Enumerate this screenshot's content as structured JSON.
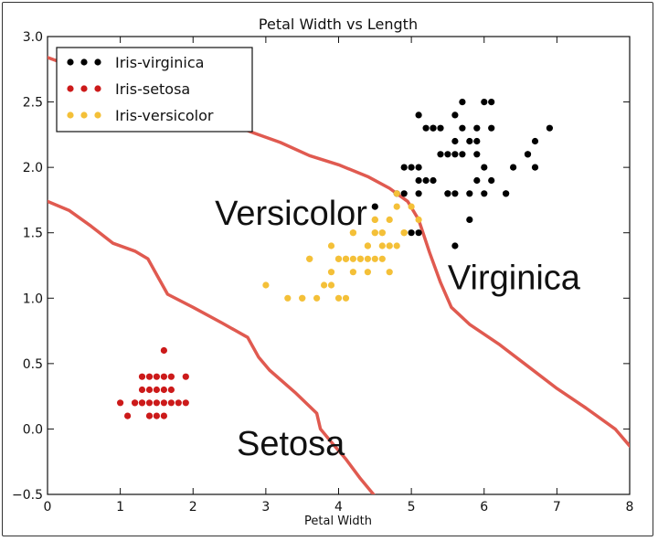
{
  "chart_data": {
    "type": "scatter",
    "title": "Petal Width vs Length",
    "xlabel": "Petal Width",
    "ylabel": "",
    "xlim": [
      0,
      8
    ],
    "ylim": [
      -0.5,
      3.0
    ],
    "xticks": [
      0,
      1,
      2,
      3,
      4,
      5,
      6,
      7,
      8
    ],
    "yticks": [
      -0.5,
      0.0,
      0.5,
      1.0,
      1.5,
      2.0,
      2.5,
      3.0
    ],
    "xtick_labels": [
      "0",
      "1",
      "2",
      "3",
      "4",
      "5",
      "6",
      "7",
      "8"
    ],
    "ytick_labels": [
      "−0.5",
      "0.0",
      "0.5",
      "1.0",
      "1.5",
      "2.0",
      "2.5",
      "3.0"
    ],
    "legend_position": "top-left",
    "series": [
      {
        "name": "Iris-virginica",
        "color": "#000000",
        "points": [
          [
            6.0,
            2.5
          ],
          [
            5.1,
            1.9
          ],
          [
            5.9,
            2.1
          ],
          [
            5.6,
            1.8
          ],
          [
            5.8,
            2.2
          ],
          [
            6.6,
            2.1
          ],
          [
            4.5,
            1.7
          ],
          [
            6.3,
            1.8
          ],
          [
            5.8,
            1.8
          ],
          [
            6.1,
            2.5
          ],
          [
            5.1,
            2.0
          ],
          [
            5.3,
            1.9
          ],
          [
            5.5,
            2.1
          ],
          [
            5.0,
            2.0
          ],
          [
            5.1,
            2.4
          ],
          [
            5.3,
            2.3
          ],
          [
            5.5,
            1.8
          ],
          [
            6.7,
            2.2
          ],
          [
            6.9,
            2.3
          ],
          [
            5.0,
            1.5
          ],
          [
            5.7,
            2.3
          ],
          [
            4.9,
            2.0
          ],
          [
            6.7,
            2.0
          ],
          [
            4.9,
            1.8
          ],
          [
            5.7,
            2.1
          ],
          [
            6.0,
            1.8
          ],
          [
            4.8,
            1.8
          ],
          [
            5.6,
            2.1
          ],
          [
            5.8,
            1.6
          ],
          [
            6.1,
            1.9
          ],
          [
            6.4,
            2.0
          ],
          [
            5.6,
            2.2
          ],
          [
            5.1,
            1.5
          ],
          [
            5.6,
            1.4
          ],
          [
            6.1,
            2.3
          ],
          [
            5.6,
            2.4
          ],
          [
            5.5,
            1.8
          ],
          [
            5.4,
            2.1
          ],
          [
            5.2,
            2.3
          ],
          [
            5.9,
            2.3
          ],
          [
            5.7,
            2.5
          ],
          [
            5.2,
            1.9
          ],
          [
            5.4,
            2.3
          ],
          [
            5.1,
            1.8
          ],
          [
            5.9,
            1.9
          ],
          [
            6.6,
            2.1
          ],
          [
            6.3,
            1.8
          ],
          [
            6.0,
            2.0
          ],
          [
            5.3,
            2.3
          ],
          [
            5.9,
            2.2
          ]
        ]
      },
      {
        "name": "Iris-setosa",
        "color": "#cc1a1a",
        "points": [
          [
            1.4,
            0.2
          ],
          [
            1.3,
            0.2
          ],
          [
            1.5,
            0.2
          ],
          [
            1.7,
            0.4
          ],
          [
            1.4,
            0.3
          ],
          [
            1.5,
            0.1
          ],
          [
            1.6,
            0.2
          ],
          [
            1.1,
            0.1
          ],
          [
            1.2,
            0.2
          ],
          [
            1.7,
            0.3
          ],
          [
            1.0,
            0.2
          ],
          [
            1.9,
            0.2
          ],
          [
            1.6,
            0.4
          ],
          [
            1.6,
            0.6
          ],
          [
            1.9,
            0.4
          ],
          [
            1.5,
            0.4
          ],
          [
            1.4,
            0.1
          ],
          [
            1.3,
            0.3
          ],
          [
            1.3,
            0.4
          ],
          [
            1.5,
            0.3
          ],
          [
            1.6,
            0.3
          ],
          [
            1.4,
            0.4
          ],
          [
            1.7,
            0.2
          ],
          [
            1.6,
            0.1
          ],
          [
            1.2,
            0.2
          ],
          [
            1.3,
            0.2
          ],
          [
            1.8,
            0.2
          ]
        ]
      },
      {
        "name": "Iris-versicolor",
        "color": "#f4c038",
        "points": [
          [
            4.7,
            1.4
          ],
          [
            4.5,
            1.5
          ],
          [
            4.9,
            1.5
          ],
          [
            4.0,
            1.3
          ],
          [
            4.6,
            1.5
          ],
          [
            4.5,
            1.3
          ],
          [
            4.7,
            1.6
          ],
          [
            3.3,
            1.0
          ],
          [
            4.6,
            1.3
          ],
          [
            3.9,
            1.4
          ],
          [
            3.5,
            1.0
          ],
          [
            4.2,
            1.5
          ],
          [
            4.0,
            1.0
          ],
          [
            4.7,
            1.4
          ],
          [
            3.6,
            1.3
          ],
          [
            4.4,
            1.4
          ],
          [
            4.1,
            1.0
          ],
          [
            4.5,
            1.5
          ],
          [
            3.9,
            1.1
          ],
          [
            4.8,
            1.8
          ],
          [
            4.0,
            1.3
          ],
          [
            4.9,
            1.5
          ],
          [
            4.7,
            1.2
          ],
          [
            4.3,
            1.3
          ],
          [
            4.4,
            1.4
          ],
          [
            4.8,
            1.4
          ],
          [
            5.0,
            1.7
          ],
          [
            3.5,
            1.0
          ],
          [
            3.8,
            1.1
          ],
          [
            3.7,
            1.0
          ],
          [
            3.9,
            1.2
          ],
          [
            5.1,
            1.6
          ],
          [
            4.5,
            1.6
          ],
          [
            4.4,
            1.3
          ],
          [
            4.1,
            1.3
          ],
          [
            4.2,
            1.2
          ],
          [
            3.0,
            1.1
          ],
          [
            4.3,
            1.3
          ],
          [
            4.2,
            1.3
          ],
          [
            4.6,
            1.4
          ],
          [
            3.6,
            1.3
          ],
          [
            4.1,
            1.3
          ],
          [
            4.2,
            1.5
          ],
          [
            4.9,
            1.5
          ],
          [
            4.6,
            1.5
          ],
          [
            4.5,
            1.6
          ],
          [
            4.8,
            1.7
          ],
          [
            4.4,
            1.2
          ]
        ]
      }
    ],
    "boundaries": [
      {
        "name": "upper-boundary",
        "color": "#e05a50",
        "points": [
          [
            0.0,
            2.84
          ],
          [
            0.4,
            2.76
          ],
          [
            0.8,
            2.68
          ],
          [
            1.2,
            2.6
          ],
          [
            1.6,
            2.52
          ],
          [
            2.0,
            2.44
          ],
          [
            2.4,
            2.36
          ],
          [
            2.8,
            2.27
          ],
          [
            3.2,
            2.19
          ],
          [
            3.6,
            2.09
          ],
          [
            4.0,
            2.02
          ],
          [
            4.4,
            1.93
          ],
          [
            4.7,
            1.84
          ],
          [
            4.95,
            1.74
          ],
          [
            5.1,
            1.6
          ],
          [
            5.25,
            1.35
          ],
          [
            5.4,
            1.12
          ],
          [
            5.55,
            0.93
          ],
          [
            5.8,
            0.8
          ],
          [
            6.2,
            0.65
          ],
          [
            6.6,
            0.48
          ],
          [
            7.0,
            0.31
          ],
          [
            7.4,
            0.16
          ],
          [
            7.8,
            0.0
          ],
          [
            8.0,
            -0.13
          ]
        ]
      },
      {
        "name": "lower-boundary",
        "color": "#e05a50",
        "points": [
          [
            0.0,
            1.74
          ],
          [
            0.3,
            1.67
          ],
          [
            0.6,
            1.55
          ],
          [
            0.9,
            1.42
          ],
          [
            1.2,
            1.36
          ],
          [
            1.38,
            1.3
          ],
          [
            1.5,
            1.18
          ],
          [
            1.65,
            1.03
          ],
          [
            2.0,
            0.93
          ],
          [
            2.4,
            0.81
          ],
          [
            2.75,
            0.7
          ],
          [
            2.9,
            0.55
          ],
          [
            3.05,
            0.45
          ],
          [
            3.4,
            0.28
          ],
          [
            3.7,
            0.12
          ],
          [
            3.75,
            0.0
          ],
          [
            3.9,
            -0.1
          ],
          [
            4.1,
            -0.23
          ],
          [
            4.3,
            -0.38
          ],
          [
            4.48,
            -0.5
          ]
        ]
      }
    ],
    "annotations": [
      {
        "text": "Versicolor",
        "x": 2.3,
        "y": 1.56
      },
      {
        "text": "Virginica",
        "x": 5.5,
        "y": 1.07
      },
      {
        "text": "Setosa",
        "x": 2.6,
        "y": -0.2
      }
    ]
  }
}
